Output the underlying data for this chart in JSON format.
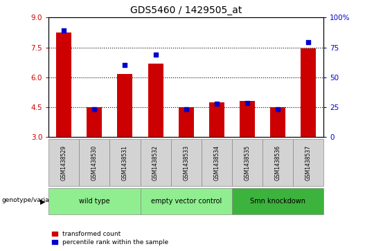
{
  "title": "GDS5460 / 1429505_at",
  "samples": [
    "GSM1438529",
    "GSM1438530",
    "GSM1438531",
    "GSM1438532",
    "GSM1438533",
    "GSM1438534",
    "GSM1438535",
    "GSM1438536",
    "GSM1438537"
  ],
  "red_values": [
    8.25,
    4.5,
    6.15,
    6.7,
    4.5,
    4.75,
    4.8,
    4.5,
    7.45
  ],
  "blue_values": [
    8.35,
    4.4,
    6.6,
    7.15,
    4.4,
    4.65,
    4.7,
    4.4,
    7.75
  ],
  "ylim": [
    3,
    9
  ],
  "yticks": [
    3,
    4.5,
    6,
    7.5,
    9
  ],
  "y2ticks": [
    0,
    25,
    50,
    75,
    100
  ],
  "y2labels": [
    "0",
    "25",
    "50",
    "75",
    "100%"
  ],
  "group_spans": [
    [
      0,
      3,
      "wild type",
      "#90ee90"
    ],
    [
      3,
      6,
      "empty vector control",
      "#90ee90"
    ],
    [
      6,
      9,
      "Smn knockdown",
      "#3cb33c"
    ]
  ],
  "bar_color": "#cc0000",
  "dot_color": "#0000cc",
  "bar_width": 0.5,
  "dot_size": 18,
  "ylabel_color": "#cc0000",
  "y2label_color": "#0000cc",
  "background_color": "#ffffff",
  "plot_bg": "#ffffff",
  "sample_cell_color": "#d3d3d3",
  "legend_items": [
    "transformed count",
    "percentile rank within the sample"
  ],
  "genotype_label": "genotype/variation"
}
